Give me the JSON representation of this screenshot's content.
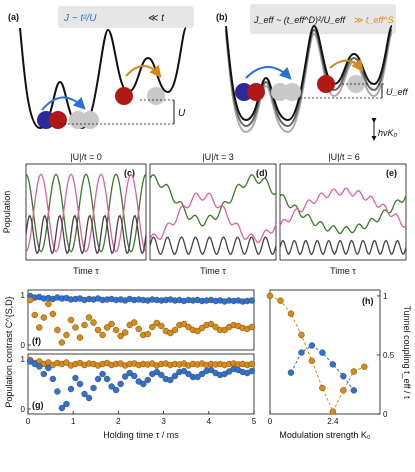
{
  "panels": {
    "a": {
      "label": "(a)",
      "formula_main": "J ~ t²/U",
      "formula_cmp": "≪ t",
      "energy_label": "U"
    },
    "b": {
      "label": "(b)",
      "formula_main": "J_eff ~ (t_eff^D)²/U_eff",
      "formula_cmp": "≫ t_eff^S",
      "energy_label": "U_eff",
      "drive_label": "hνK₀"
    },
    "c": {
      "label": "(c)",
      "title": "|U|/t = 0"
    },
    "d": {
      "label": "(d)",
      "title": "|U|/t = 3"
    },
    "e": {
      "label": "(e)",
      "title": "|U|/t = 6"
    },
    "f": {
      "label": "(f)"
    },
    "g": {
      "label": "(g)"
    },
    "h": {
      "label": "(h)"
    }
  },
  "axes": {
    "population_ylabel": "Population",
    "time_xlabel": "Time τ",
    "contrast_ylabel": "Population contrast C^{S,D}",
    "holding_xlabel": "Holding time τ / ms",
    "modulation_xlabel": "Modulation strength K₀",
    "tunnel_ylabel": "Tunnel coupling t_eff / t"
  },
  "colors": {
    "green": "#3a7a2a",
    "pink": "#e060a0",
    "dark": "#444444",
    "blue": "#2a72d8",
    "orange": "#d68a1a",
    "red_atom": "#b01818",
    "blue_atom": "#2a2a9a",
    "grey_atom": "#c8c8c8"
  },
  "chart_data": [
    {
      "type": "scatter",
      "panel": "f",
      "xlim": [
        0,
        5
      ],
      "ylim": [
        -0.1,
        1.1
      ],
      "xticks": [
        0,
        1,
        2,
        3,
        4,
        5
      ],
      "yticks": [
        0,
        1
      ],
      "series": [
        {
          "color": "blue",
          "x": [
            0.05,
            0.15,
            0.25,
            0.35,
            0.45,
            0.55,
            0.65,
            0.75,
            0.85,
            0.95,
            1.05,
            1.15,
            1.25,
            1.35,
            1.45,
            1.55,
            1.65,
            1.75,
            1.85,
            1.95,
            2.05,
            2.15,
            2.25,
            2.35,
            2.45,
            2.55,
            2.65,
            2.75,
            2.85,
            2.95,
            3.05,
            3.15,
            3.25,
            3.35,
            3.45,
            3.55,
            3.65,
            3.75,
            3.85,
            3.95,
            4.05,
            4.15,
            4.25,
            4.35,
            4.45,
            4.55,
            4.65,
            4.75,
            4.85,
            4.95
          ],
          "y": [
            0.98,
            0.95,
            0.96,
            0.93,
            0.94,
            0.92,
            0.95,
            0.93,
            0.94,
            0.91,
            0.92,
            0.93,
            0.9,
            0.92,
            0.91,
            0.93,
            0.9,
            0.91,
            0.92,
            0.9,
            0.91,
            0.89,
            0.92,
            0.9,
            0.91,
            0.9,
            0.89,
            0.91,
            0.9,
            0.89,
            0.9,
            0.91,
            0.89,
            0.9,
            0.88,
            0.9,
            0.89,
            0.9,
            0.88,
            0.89,
            0.9,
            0.88,
            0.89,
            0.87,
            0.89,
            0.88,
            0.89,
            0.87,
            0.88,
            0.89
          ]
        },
        {
          "color": "orange",
          "x": [
            0.05,
            0.15,
            0.25,
            0.35,
            0.45,
            0.55,
            0.65,
            0.75,
            0.85,
            0.95,
            1.05,
            1.15,
            1.25,
            1.35,
            1.45,
            1.55,
            1.65,
            1.75,
            1.85,
            1.95,
            2.05,
            2.15,
            2.25,
            2.35,
            2.45,
            2.55,
            2.65,
            2.75,
            2.85,
            2.95,
            3.05,
            3.15,
            3.25,
            3.35,
            3.45,
            3.55,
            3.65,
            3.75,
            3.85,
            3.95,
            4.05,
            4.15,
            4.25,
            4.35,
            4.45,
            4.55,
            4.65,
            4.75,
            4.85,
            4.95
          ],
          "y": [
            0.9,
            0.6,
            0.35,
            0.55,
            0.82,
            0.62,
            0.3,
            0.05,
            0.2,
            0.5,
            0.35,
            0.15,
            0.4,
            0.55,
            0.45,
            0.3,
            0.2,
            0.35,
            0.42,
            0.3,
            0.18,
            0.25,
            0.4,
            0.45,
            0.32,
            0.2,
            0.22,
            0.36,
            0.44,
            0.38,
            0.28,
            0.24,
            0.3,
            0.4,
            0.42,
            0.36,
            0.3,
            0.28,
            0.34,
            0.4,
            0.42,
            0.36,
            0.3,
            0.3,
            0.36,
            0.4,
            0.38,
            0.34,
            0.32,
            0.36
          ]
        }
      ]
    },
    {
      "type": "scatter",
      "panel": "g",
      "xlim": [
        0,
        5
      ],
      "ylim": [
        -0.1,
        1.1
      ],
      "xticks": [
        0,
        1,
        2,
        3,
        4,
        5
      ],
      "yticks": [
        0,
        1
      ],
      "series": [
        {
          "color": "orange",
          "x": [
            0.05,
            0.15,
            0.25,
            0.35,
            0.45,
            0.55,
            0.65,
            0.75,
            0.85,
            0.95,
            1.05,
            1.15,
            1.25,
            1.35,
            1.45,
            1.55,
            1.65,
            1.75,
            1.85,
            1.95,
            2.05,
            2.15,
            2.25,
            2.35,
            2.45,
            2.55,
            2.65,
            2.75,
            2.85,
            2.95,
            3.05,
            3.15,
            3.25,
            3.35,
            3.45,
            3.55,
            3.65,
            3.75,
            3.85,
            3.95,
            4.05,
            4.15,
            4.25,
            4.35,
            4.45,
            4.55,
            4.65,
            4.75,
            4.85,
            4.95
          ],
          "y": [
            0.98,
            0.92,
            0.95,
            0.9,
            0.93,
            0.88,
            0.92,
            0.9,
            0.93,
            0.87,
            0.9,
            0.92,
            0.88,
            0.91,
            0.9,
            0.87,
            0.9,
            0.92,
            0.88,
            0.9,
            0.91,
            0.87,
            0.9,
            0.91,
            0.88,
            0.9,
            0.89,
            0.91,
            0.87,
            0.9,
            0.91,
            0.88,
            0.9,
            0.89,
            0.91,
            0.87,
            0.9,
            0.89,
            0.91,
            0.88,
            0.9,
            0.89,
            0.9,
            0.88,
            0.9,
            0.91,
            0.89,
            0.9,
            0.88,
            0.9
          ]
        },
        {
          "color": "blue",
          "x": [
            0.05,
            0.15,
            0.25,
            0.35,
            0.45,
            0.55,
            0.65,
            0.75,
            0.85,
            0.95,
            1.05,
            1.15,
            1.25,
            1.35,
            1.45,
            1.55,
            1.65,
            1.75,
            1.85,
            1.95,
            2.05,
            2.15,
            2.25,
            2.35,
            2.45,
            2.55,
            2.65,
            2.75,
            2.85,
            2.95,
            3.05,
            3.15,
            3.25,
            3.35,
            3.45,
            3.55,
            3.65,
            3.75,
            3.85,
            3.95,
            4.05,
            4.15,
            4.25,
            4.35,
            4.45,
            4.55,
            4.65,
            4.75,
            4.85,
            4.95
          ],
          "y": [
            0.95,
            0.9,
            0.85,
            0.7,
            0.82,
            0.6,
            0.35,
            0.02,
            0.1,
            0.4,
            0.62,
            0.5,
            0.3,
            0.22,
            0.42,
            0.6,
            0.7,
            0.6,
            0.45,
            0.38,
            0.5,
            0.65,
            0.72,
            0.66,
            0.55,
            0.5,
            0.58,
            0.7,
            0.74,
            0.68,
            0.6,
            0.58,
            0.66,
            0.74,
            0.76,
            0.7,
            0.64,
            0.64,
            0.7,
            0.76,
            0.78,
            0.72,
            0.68,
            0.7,
            0.75,
            0.8,
            0.78,
            0.74,
            0.72,
            0.76
          ]
        }
      ]
    },
    {
      "type": "scatter",
      "panel": "h",
      "xlim": [
        0,
        4.2
      ],
      "ylim": [
        0,
        1.05
      ],
      "xticks": [
        0,
        2.4
      ],
      "yticks": [
        0,
        0.5,
        1
      ],
      "series": [
        {
          "color": "orange",
          "x": [
            0.0,
            0.4,
            0.8,
            1.2,
            1.6,
            2.0,
            2.4,
            2.8,
            3.2,
            3.6
          ],
          "y": [
            1.0,
            0.96,
            0.85,
            0.67,
            0.45,
            0.22,
            0.02,
            0.2,
            0.36,
            0.4
          ]
        },
        {
          "color": "blue",
          "x": [
            0.8,
            1.2,
            1.6,
            2.0,
            2.4,
            2.8,
            3.2
          ],
          "y": [
            0.35,
            0.52,
            0.58,
            0.52,
            0.42,
            0.32,
            0.2
          ]
        }
      ]
    }
  ]
}
